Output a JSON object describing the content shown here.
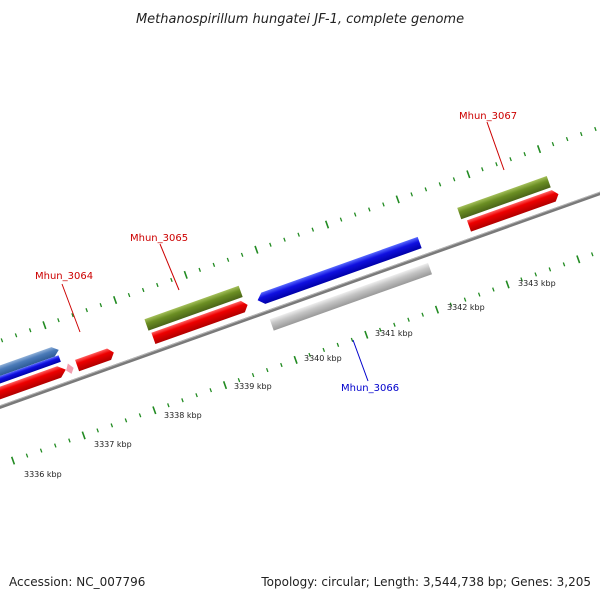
{
  "title": "Methanospirillum hungatei JF-1, complete genome",
  "footer": {
    "accession": "Accession: NC_007796",
    "topology": "Topology: circular; Length: 3,544,738 bp; Genes: 3,205"
  },
  "scale_labels": [
    "3336 kbp",
    "3337 kbp",
    "3338 kbp",
    "3339 kbp",
    "3340 kbp",
    "3341 kbp",
    "3342 kbp",
    "3343 kbp"
  ],
  "gene_labels": [
    {
      "text": "Mhun_3064",
      "color": "#cc0000"
    },
    {
      "text": "Mhun_3065",
      "color": "#cc0000"
    },
    {
      "text": "Mhun_3066",
      "color": "#0000cc"
    },
    {
      "text": "Mhun_3067",
      "color": "#cc0000"
    }
  ],
  "colors": {
    "forward_cds": "#ee1111",
    "reverse_cds": "#1111dd",
    "olive_feature": "#6b8e23",
    "grey_feature": "#bbbbbb",
    "backbone": "#808080",
    "ticks": "#228b22"
  }
}
